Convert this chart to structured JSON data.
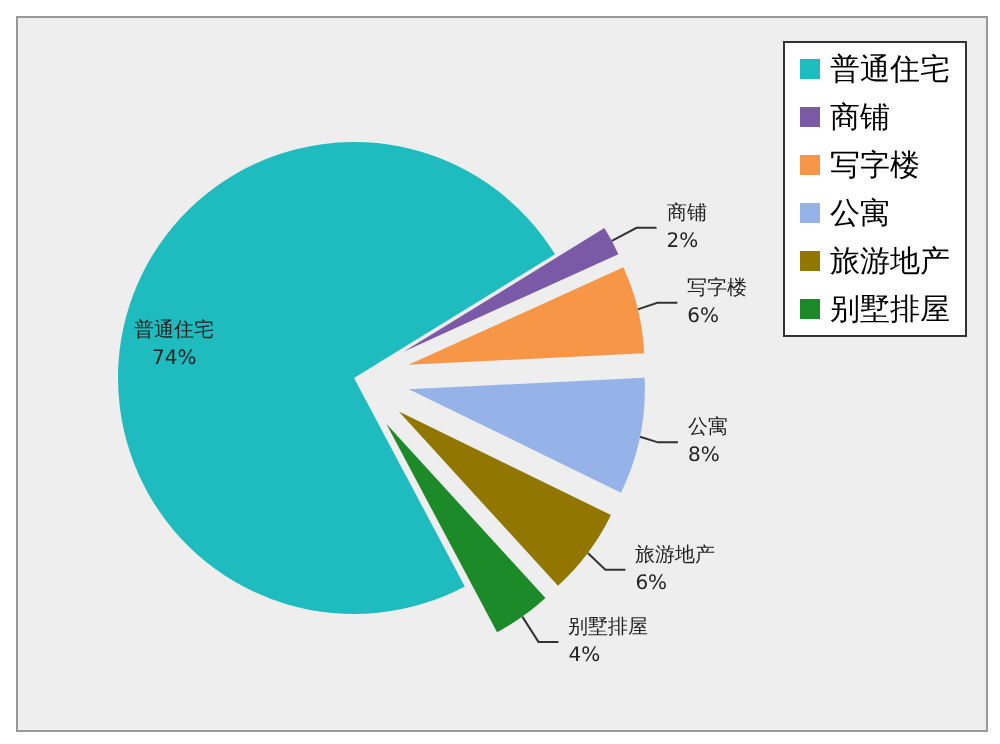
{
  "chart_data": {
    "type": "pie",
    "categories": [
      "普通住宅",
      "商铺",
      "写字楼",
      "公寓",
      "旅游地产",
      "别墅排屋"
    ],
    "values": [
      74,
      2,
      6,
      8,
      6,
      4
    ],
    "value_labels": [
      "74%",
      "2%",
      "6%",
      "8%",
      "6%",
      "4%"
    ],
    "colors": [
      "#1fbcbf",
      "#7a5aa6",
      "#f79646",
      "#95b3e8",
      "#917600",
      "#1d8a2a"
    ],
    "legend": "top right"
  }
}
